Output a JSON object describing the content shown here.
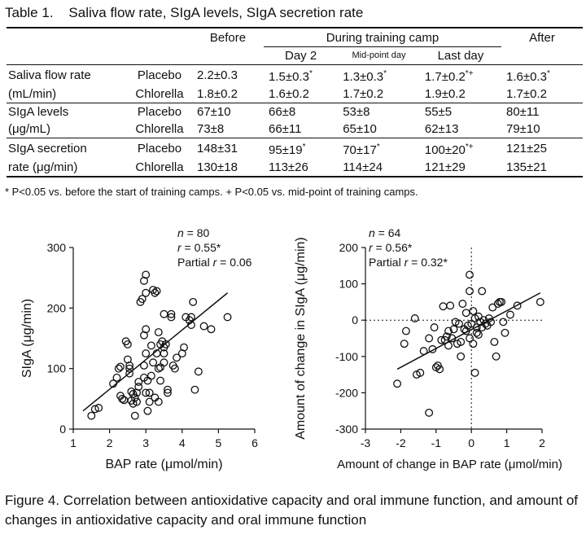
{
  "table": {
    "title": "Table 1.    Saliva flow rate, SIgA levels, SIgA secretion rate",
    "headers": {
      "before": "Before",
      "during": "During training camp",
      "after": "After",
      "day2": "Day 2",
      "midpoint": "Mid-point day",
      "lastday": "Last day"
    },
    "rows": [
      {
        "label_line1": "Saliva flow rate",
        "label_line2": "(mL/min)",
        "groups": [
          "Placebo",
          "Chlorella"
        ],
        "placebo": [
          "2.2±0.3",
          "1.5±0.3",
          "1.3±0.3",
          "1.7±0.2",
          "1.6±0.3"
        ],
        "placebo_marks": [
          "",
          "*",
          "*",
          "*+",
          "*"
        ],
        "chlorella": [
          "1.8±0.2",
          "1.6±0.2",
          "1.7±0.2",
          "1.9±0.2",
          "1.7±0.2"
        ],
        "chlorella_marks": [
          "",
          "",
          "",
          "",
          ""
        ]
      },
      {
        "label_line1": "SIgA levels",
        "label_line2": "(μg/mL)",
        "groups": [
          "Placebo",
          "Chlorella"
        ],
        "placebo": [
          "67±10",
          "66±8",
          "53±8",
          "55±5",
          "80±11"
        ],
        "placebo_marks": [
          "",
          "",
          "",
          "",
          ""
        ],
        "chlorella": [
          "73±8",
          "66±11",
          "65±10",
          "62±13",
          "79±10"
        ],
        "chlorella_marks": [
          "",
          "",
          "",
          "",
          ""
        ]
      },
      {
        "label_line1": "SIgA secretion",
        "label_line2": "rate (μg/min)",
        "groups": [
          "Placebo",
          "Chlorella"
        ],
        "placebo": [
          "148±31",
          "95±19",
          "70±17",
          "100±20",
          "121±25"
        ],
        "placebo_marks": [
          "",
          "*",
          "*",
          "*+",
          ""
        ],
        "chlorella": [
          "130±18",
          "113±26",
          "114±24",
          "121±29",
          "135±21"
        ],
        "chlorella_marks": [
          "",
          "",
          "",
          "",
          ""
        ]
      }
    ],
    "footnote": "* P<0.05 vs. before the start of training camps. + P<0.05 vs. mid-point of training camps."
  },
  "chart_data": [
    {
      "type": "scatter",
      "xlabel": "BAP rate (μmol/min)",
      "ylabel": "SIgA (μg/min)",
      "xlim": [
        1,
        6
      ],
      "ylim": [
        0,
        300
      ],
      "xticks": [
        1,
        2,
        3,
        4,
        5,
        6
      ],
      "yticks": [
        0,
        100,
        200,
        300
      ],
      "stats": {
        "n_label": "n",
        "n_value": " = 80",
        "r_label": "r",
        "r_value": " = 0.55*",
        "partial_label": "Partial ",
        "partial_r": "r",
        "partial_value": " = 0.06"
      },
      "regression": {
        "x": [
          1.27,
          5.25
        ],
        "y": [
          30,
          225
        ]
      },
      "points": [
        [
          1.5,
          22
        ],
        [
          1.6,
          33
        ],
        [
          1.7,
          35
        ],
        [
          2.1,
          75
        ],
        [
          2.2,
          85
        ],
        [
          2.25,
          100
        ],
        [
          2.3,
          103
        ],
        [
          2.3,
          55
        ],
        [
          2.35,
          50
        ],
        [
          2.4,
          48
        ],
        [
          2.45,
          145
        ],
        [
          2.5,
          140
        ],
        [
          2.5,
          115
        ],
        [
          2.55,
          105
        ],
        [
          2.55,
          100
        ],
        [
          2.6,
          62
        ],
        [
          2.6,
          47
        ],
        [
          2.65,
          42
        ],
        [
          2.65,
          58
        ],
        [
          2.7,
          22
        ],
        [
          2.7,
          52
        ],
        [
          2.75,
          45
        ],
        [
          2.75,
          60
        ],
        [
          2.8,
          70
        ],
        [
          2.8,
          78
        ],
        [
          2.85,
          210
        ],
        [
          2.9,
          215
        ],
        [
          2.95,
          245
        ],
        [
          2.95,
          85
        ],
        [
          2.95,
          105
        ],
        [
          3.0,
          255
        ],
        [
          3.0,
          225
        ],
        [
          3.0,
          165
        ],
        [
          3.0,
          125
        ],
        [
          3.0,
          60
        ],
        [
          3.05,
          80
        ],
        [
          3.05,
          30
        ],
        [
          3.1,
          45
        ],
        [
          3.1,
          60
        ],
        [
          3.15,
          138
        ],
        [
          3.2,
          230
        ],
        [
          3.2,
          110
        ],
        [
          3.25,
          225
        ],
        [
          3.25,
          52
        ],
        [
          3.3,
          228
        ],
        [
          3.3,
          125
        ],
        [
          3.35,
          100
        ],
        [
          3.35,
          45
        ],
        [
          3.4,
          102
        ],
        [
          3.4,
          140
        ],
        [
          3.4,
          80
        ],
        [
          3.45,
          145
        ],
        [
          3.5,
          190
        ],
        [
          3.5,
          125
        ],
        [
          3.5,
          110
        ],
        [
          3.5,
          135
        ],
        [
          3.55,
          140
        ],
        [
          3.6,
          65
        ],
        [
          3.6,
          60
        ],
        [
          3.7,
          190
        ],
        [
          3.7,
          185
        ],
        [
          3.75,
          105
        ],
        [
          3.8,
          100
        ],
        [
          4.0,
          125
        ],
        [
          4.05,
          135
        ],
        [
          4.1,
          185
        ],
        [
          4.2,
          180
        ],
        [
          4.25,
          185
        ],
        [
          4.3,
          210
        ],
        [
          4.35,
          65
        ],
        [
          4.45,
          95
        ],
        [
          4.6,
          170
        ],
        [
          4.8,
          165
        ],
        [
          5.25,
          185
        ],
        [
          4.25,
          172
        ],
        [
          3.35,
          160
        ],
        [
          2.95,
          155
        ],
        [
          2.55,
          92
        ],
        [
          3.85,
          118
        ],
        [
          3.15,
          88
        ]
      ]
    },
    {
      "type": "scatter",
      "xlabel": "Amount of change in BAP rate (μmol/min)",
      "ylabel": "Amount of change in SIgA (μg/min)",
      "xlim": [
        -3,
        2
      ],
      "ylim": [
        -300,
        200
      ],
      "xticks": [
        -3,
        -2,
        -1,
        0,
        1,
        2
      ],
      "yticks": [
        -300,
        -200,
        -100,
        0,
        100,
        200
      ],
      "stats": {
        "n_label": "n",
        "n_value": " = 64",
        "r_label": "r",
        "r_value": " = 0.56*",
        "partial_label": "Partial ",
        "partial_r": "r",
        "partial_value": " = 0.32*"
      },
      "regression": {
        "x": [
          -2.1,
          1.95
        ],
        "y": [
          -135,
          75
        ]
      },
      "points": [
        [
          -2.1,
          -175
        ],
        [
          -1.9,
          -65
        ],
        [
          -1.85,
          -30
        ],
        [
          -1.6,
          5
        ],
        [
          -1.55,
          -150
        ],
        [
          -1.45,
          -145
        ],
        [
          -1.35,
          -85
        ],
        [
          -1.2,
          -255
        ],
        [
          -1.2,
          -50
        ],
        [
          -1.1,
          -80
        ],
        [
          -1.05,
          -20
        ],
        [
          -1.0,
          -130
        ],
        [
          -0.95,
          -125
        ],
        [
          -0.9,
          -135
        ],
        [
          -0.85,
          -55
        ],
        [
          -0.8,
          38
        ],
        [
          -0.75,
          -55
        ],
        [
          -0.7,
          -45
        ],
        [
          -0.65,
          -30
        ],
        [
          -0.6,
          40
        ],
        [
          -0.55,
          -50
        ],
        [
          -0.5,
          -25
        ],
        [
          -0.4,
          -65
        ],
        [
          -0.35,
          -10
        ],
        [
          -0.3,
          -60
        ],
        [
          -0.25,
          45
        ],
        [
          -0.2,
          -25
        ],
        [
          -0.15,
          20
        ],
        [
          -0.1,
          -15
        ],
        [
          -0.05,
          -50
        ],
        [
          -0.05,
          125
        ],
        [
          -0.05,
          80
        ],
        [
          0.0,
          -10
        ],
        [
          0.05,
          25
        ],
        [
          0.05,
          -65
        ],
        [
          0.1,
          5
        ],
        [
          0.1,
          -145
        ],
        [
          0.15,
          -20
        ],
        [
          0.2,
          -40
        ],
        [
          0.2,
          10
        ],
        [
          0.25,
          -5
        ],
        [
          0.3,
          -20
        ],
        [
          0.3,
          80
        ],
        [
          0.35,
          0
        ],
        [
          0.4,
          -10
        ],
        [
          0.45,
          -15
        ],
        [
          0.5,
          5
        ],
        [
          0.55,
          -5
        ],
        [
          0.6,
          35
        ],
        [
          0.65,
          -60
        ],
        [
          0.7,
          -100
        ],
        [
          0.75,
          45
        ],
        [
          0.8,
          50
        ],
        [
          0.85,
          50
        ],
        [
          0.9,
          -5
        ],
        [
          0.95,
          -35
        ],
        [
          1.1,
          15
        ],
        [
          1.3,
          40
        ],
        [
          1.95,
          50
        ],
        [
          -0.3,
          -100
        ],
        [
          -0.45,
          -5
        ],
        [
          -0.15,
          -30
        ],
        [
          0.15,
          -35
        ],
        [
          -0.65,
          -70
        ]
      ]
    }
  ],
  "caption": "Figure 4.   Correlation between antioxidative capacity and oral immune function, and amount of changes in antioxidative capacity and oral immune function"
}
